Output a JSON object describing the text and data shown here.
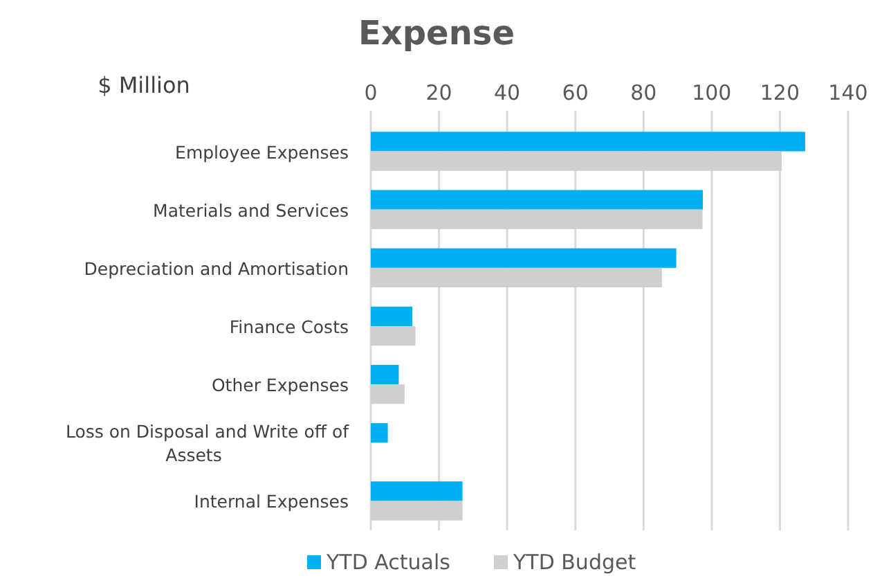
{
  "chart_data": {
    "type": "bar",
    "orientation": "horizontal",
    "title": "Expense",
    "xlabel": "$ Million",
    "categories": [
      "Employee Expenses",
      "Materials and Services",
      "Depreciation and Amortisation",
      "Finance Costs",
      "Other Expenses",
      "Loss on Disposal and Write off of Assets",
      "Internal Expenses"
    ],
    "series": [
      {
        "name": "YTD Actuals",
        "color": "#00b0f0",
        "values": [
          127.4,
          97.4,
          89.6,
          12.2,
          8.2,
          5.0,
          26.9
        ]
      },
      {
        "name": "YTD Budget",
        "color": "#d0cece",
        "values": [
          120.5,
          97.3,
          85.4,
          13.1,
          9.9,
          0,
          26.9
        ]
      }
    ],
    "xlim": [
      0,
      140
    ],
    "xticks": [
      0,
      20,
      40,
      60,
      80,
      100,
      120,
      140
    ],
    "grid": "x",
    "legend": "bottom"
  }
}
